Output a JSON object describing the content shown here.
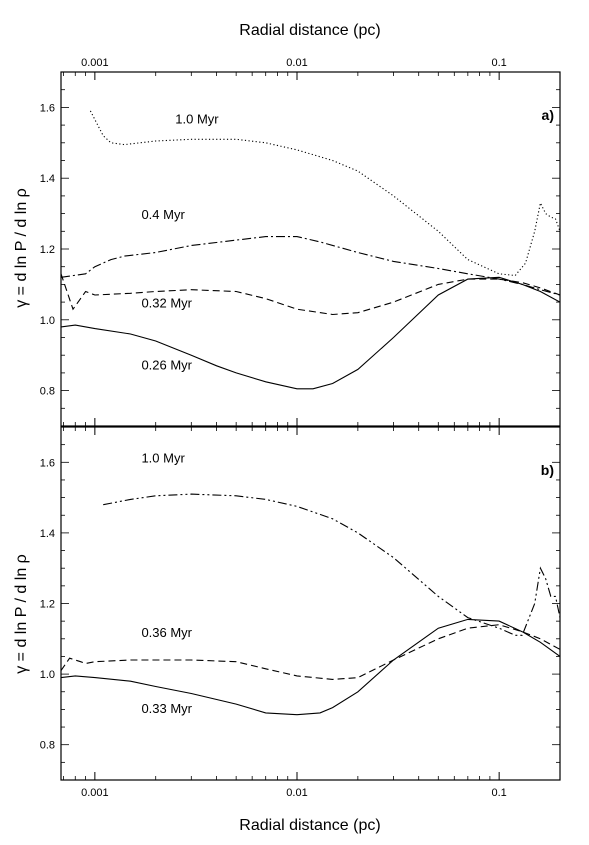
{
  "chart_data": [
    {
      "type": "line",
      "panel_label": "a)",
      "xscale": "log",
      "xlim": [
        0.00068,
        0.2
      ],
      "ylim": [
        0.7,
        1.7
      ],
      "xlabel_top": "Radial distance (pc)",
      "xticks": [
        {
          "value": 0.001,
          "label": "0.001"
        },
        {
          "value": 0.01,
          "label": "0.01"
        },
        {
          "value": 0.1,
          "label": "0.1"
        }
      ],
      "yticks": [
        {
          "value": 0.8,
          "label": "0.8"
        },
        {
          "value": 1.0,
          "label": "1.0"
        },
        {
          "value": 1.2,
          "label": "1.2"
        },
        {
          "value": 1.4,
          "label": "1.4"
        },
        {
          "value": 1.6,
          "label": "1.6"
        }
      ],
      "series": [
        {
          "name": "1.0 Myr",
          "style": "dotted",
          "label_x": 0.0025,
          "label_y": 1.555,
          "x": [
            0.00095,
            0.0011,
            0.0012,
            0.0014,
            0.002,
            0.003,
            0.005,
            0.007,
            0.01,
            0.015,
            0.02,
            0.03,
            0.05,
            0.07,
            0.1,
            0.12,
            0.135,
            0.15,
            0.16,
            0.17,
            0.18,
            0.19,
            0.2
          ],
          "y": [
            1.59,
            1.52,
            1.5,
            1.495,
            1.505,
            1.51,
            1.51,
            1.5,
            1.48,
            1.45,
            1.42,
            1.35,
            1.25,
            1.17,
            1.13,
            1.125,
            1.16,
            1.25,
            1.33,
            1.3,
            1.29,
            1.285,
            1.25
          ]
        },
        {
          "name": "0.4 Myr",
          "style": "dash-dot",
          "label_x": 0.0017,
          "label_y": 1.285,
          "x": [
            0.00068,
            0.0009,
            0.001,
            0.0012,
            0.0014,
            0.002,
            0.003,
            0.005,
            0.007,
            0.01,
            0.013,
            0.02,
            0.03,
            0.05,
            0.07,
            0.1,
            0.13,
            0.16,
            0.2
          ],
          "y": [
            1.12,
            1.13,
            1.15,
            1.17,
            1.18,
            1.19,
            1.21,
            1.225,
            1.235,
            1.235,
            1.22,
            1.19,
            1.165,
            1.145,
            1.13,
            1.115,
            1.1,
            1.085,
            1.07
          ]
        },
        {
          "name": "0.32 Myr",
          "style": "dashed",
          "label_x": 0.0017,
          "label_y": 1.035,
          "x": [
            0.00068,
            0.00078,
            0.00085,
            0.0009,
            0.001,
            0.0015,
            0.002,
            0.003,
            0.005,
            0.007,
            0.01,
            0.015,
            0.02,
            0.03,
            0.05,
            0.07,
            0.1,
            0.13,
            0.16,
            0.2
          ],
          "y": [
            1.13,
            1.03,
            1.06,
            1.08,
            1.07,
            1.075,
            1.08,
            1.085,
            1.08,
            1.06,
            1.03,
            1.015,
            1.02,
            1.05,
            1.1,
            1.115,
            1.115,
            1.105,
            1.09,
            1.07
          ]
        },
        {
          "name": "0.26 Myr",
          "style": "solid",
          "label_x": 0.0017,
          "label_y": 0.86,
          "x": [
            0.00068,
            0.0008,
            0.001,
            0.0015,
            0.002,
            0.003,
            0.004,
            0.005,
            0.007,
            0.01,
            0.012,
            0.015,
            0.02,
            0.03,
            0.05,
            0.07,
            0.1,
            0.13,
            0.16,
            0.2
          ],
          "y": [
            0.98,
            0.985,
            0.975,
            0.96,
            0.94,
            0.9,
            0.87,
            0.85,
            0.825,
            0.805,
            0.805,
            0.82,
            0.86,
            0.95,
            1.07,
            1.115,
            1.12,
            1.1,
            1.08,
            1.05
          ]
        }
      ]
    },
    {
      "type": "line",
      "panel_label": "b)",
      "xscale": "log",
      "xlim": [
        0.00068,
        0.2
      ],
      "ylim": [
        0.7,
        1.7
      ],
      "xlabel": "Radial distance (pc)",
      "xticks": [
        {
          "value": 0.001,
          "label": "0.001"
        },
        {
          "value": 0.01,
          "label": "0.01"
        },
        {
          "value": 0.1,
          "label": "0.1"
        }
      ],
      "yticks": [
        {
          "value": 0.8,
          "label": "0.8"
        },
        {
          "value": 1.0,
          "label": "1.0"
        },
        {
          "value": 1.2,
          "label": "1.2"
        },
        {
          "value": 1.4,
          "label": "1.4"
        },
        {
          "value": 1.6,
          "label": "1.6"
        }
      ],
      "series": [
        {
          "name": "1.0 Myr",
          "style": "dash-dot-dot",
          "label_x": 0.0017,
          "label_y": 1.6,
          "x": [
            0.0011,
            0.0015,
            0.002,
            0.003,
            0.005,
            0.007,
            0.01,
            0.015,
            0.02,
            0.03,
            0.05,
            0.07,
            0.1,
            0.12,
            0.13,
            0.15,
            0.16,
            0.17,
            0.18,
            0.19,
            0.2
          ],
          "y": [
            1.48,
            1.495,
            1.505,
            1.51,
            1.505,
            1.495,
            1.475,
            1.44,
            1.4,
            1.33,
            1.22,
            1.16,
            1.13,
            1.11,
            1.11,
            1.2,
            1.3,
            1.27,
            1.22,
            1.22,
            1.16
          ]
        },
        {
          "name": "0.36 Myr",
          "style": "dashed",
          "label_x": 0.0017,
          "label_y": 1.105,
          "x": [
            0.00068,
            0.00075,
            0.00085,
            0.0009,
            0.001,
            0.0015,
            0.002,
            0.003,
            0.005,
            0.007,
            0.01,
            0.015,
            0.02,
            0.03,
            0.05,
            0.07,
            0.1,
            0.13,
            0.16,
            0.2
          ],
          "y": [
            1.01,
            1.045,
            1.035,
            1.03,
            1.035,
            1.04,
            1.04,
            1.04,
            1.035,
            1.015,
            0.995,
            0.985,
            0.99,
            1.04,
            1.1,
            1.13,
            1.14,
            1.12,
            1.1,
            1.07
          ]
        },
        {
          "name": "0.33 Myr",
          "style": "solid",
          "label_x": 0.0017,
          "label_y": 0.89,
          "x": [
            0.00068,
            0.0008,
            0.001,
            0.0015,
            0.002,
            0.003,
            0.005,
            0.007,
            0.01,
            0.013,
            0.015,
            0.02,
            0.03,
            0.05,
            0.07,
            0.1,
            0.13,
            0.16,
            0.2
          ],
          "y": [
            0.99,
            0.995,
            0.99,
            0.98,
            0.965,
            0.945,
            0.915,
            0.89,
            0.885,
            0.89,
            0.905,
            0.95,
            1.04,
            1.13,
            1.155,
            1.15,
            1.12,
            1.09,
            1.05
          ]
        }
      ]
    }
  ],
  "ylabel": "γ = d ln P / d ln ρ"
}
